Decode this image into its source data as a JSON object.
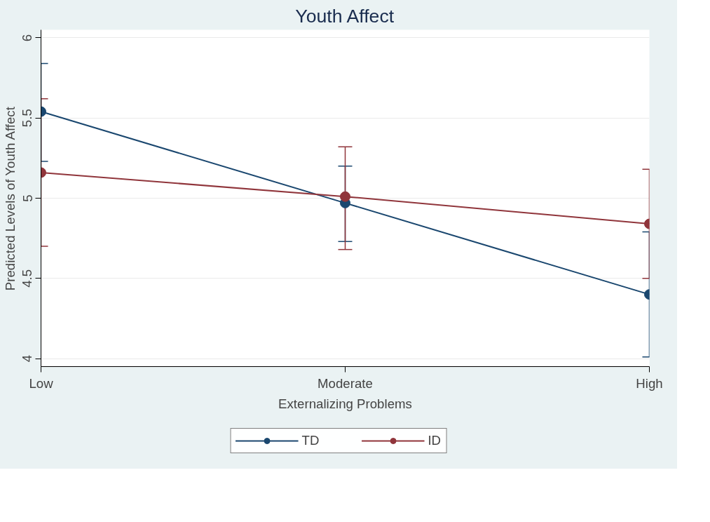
{
  "chart_data": {
    "type": "line",
    "title": "Youth Affect",
    "xlabel": "Externalizing Problems",
    "ylabel": "Predicted Levels of Youth Affect",
    "categories": [
      "Low",
      "Moderate",
      "High"
    ],
    "series": [
      {
        "name": "TD",
        "color": "#1a476f",
        "values": [
          5.54,
          4.97,
          4.4
        ],
        "errors": [
          [
            5.23,
            5.84
          ],
          [
            4.73,
            5.2
          ],
          [
            4.01,
            4.79
          ]
        ]
      },
      {
        "name": "ID",
        "color": "#90353b",
        "values": [
          5.16,
          5.01,
          4.84
        ],
        "errors": [
          [
            4.7,
            5.62
          ],
          [
            4.68,
            5.32
          ],
          [
            4.5,
            5.18
          ]
        ]
      }
    ],
    "ylim": [
      3.95,
      6.05
    ],
    "yticks": [
      4,
      4.5,
      5,
      5.5,
      6
    ],
    "grid": "y",
    "legend": "bottom",
    "marker": "circle",
    "line_style": "solid"
  }
}
